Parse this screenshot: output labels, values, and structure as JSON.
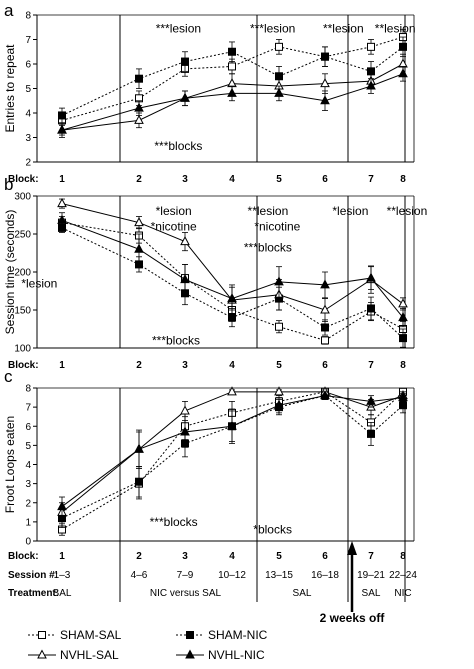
{
  "chart_data": [
    {
      "type": "line",
      "panel": "a",
      "ylabel": "Entries to repeat",
      "ylim": [
        2,
        8
      ],
      "yticks": [
        2,
        3,
        4,
        5,
        6,
        7,
        8
      ],
      "block_row_label": "Block:",
      "categories": [
        "1",
        "2",
        "3",
        "4",
        "5",
        "6",
        "7",
        "8"
      ],
      "series": [
        {
          "name": "SHAM-SAL",
          "values": [
            3.7,
            4.6,
            5.8,
            5.9,
            6.7,
            6.3,
            6.7,
            7.1
          ],
          "err": [
            0.2,
            0.3,
            0.3,
            0.3,
            0.3,
            0.4,
            0.3,
            0.3
          ]
        },
        {
          "name": "SHAM-NIC",
          "values": [
            3.9,
            5.4,
            6.1,
            6.5,
            5.5,
            6.3,
            5.7,
            6.7
          ],
          "err": [
            0.3,
            0.4,
            0.4,
            0.4,
            0.4,
            0.4,
            0.4,
            0.4
          ]
        },
        {
          "name": "NVHL-SAL",
          "values": [
            3.3,
            3.7,
            4.6,
            5.2,
            5.1,
            5.2,
            5.3,
            6.0
          ],
          "err": [
            0.2,
            0.3,
            0.3,
            0.4,
            0.4,
            0.4,
            0.3,
            0.4
          ]
        },
        {
          "name": "NVHL-NIC",
          "values": [
            3.3,
            4.2,
            4.6,
            4.8,
            4.8,
            4.5,
            5.1,
            5.6
          ],
          "err": [
            0.3,
            0.3,
            0.3,
            0.3,
            0.3,
            0.4,
            0.3,
            0.3
          ]
        }
      ],
      "annotations": [
        {
          "text": "***lesion",
          "x": 3.5,
          "y": 7.45
        },
        {
          "text": "***lesion",
          "x": 5.5,
          "y": 7.45
        },
        {
          "text": "**lesion",
          "x": 7.0,
          "y": 7.45
        },
        {
          "text": "**lesion",
          "x": 8.1,
          "y": 7.45
        },
        {
          "text": "***blocks",
          "x": 3.5,
          "y": 2.65
        }
      ]
    },
    {
      "type": "line",
      "panel": "b",
      "ylabel": "Session time (seconds)",
      "ylim": [
        100,
        300
      ],
      "yticks": [
        100,
        150,
        200,
        250,
        300
      ],
      "block_row_label": "Block:",
      "categories": [
        "1",
        "2",
        "3",
        "4",
        "5",
        "6",
        "7",
        "8"
      ],
      "series": [
        {
          "name": "SHAM-SAL",
          "values": [
            265,
            248,
            192,
            150,
            128,
            110,
            148,
            125
          ],
          "err": [
            8,
            10,
            18,
            15,
            8,
            5,
            12,
            10
          ]
        },
        {
          "name": "SHAM-NIC",
          "values": [
            258,
            210,
            172,
            140,
            165,
            127,
            152,
            113
          ],
          "err": [
            6,
            10,
            15,
            12,
            15,
            10,
            15,
            12
          ]
        },
        {
          "name": "NVHL-SAL",
          "values": [
            290,
            265,
            240,
            163,
            170,
            150,
            190,
            158
          ],
          "err": [
            6,
            8,
            12,
            20,
            20,
            15,
            18,
            8
          ]
        },
        {
          "name": "NVHL-NIC",
          "values": [
            268,
            230,
            190,
            165,
            187,
            183,
            192,
            140
          ],
          "err": [
            10,
            20,
            20,
            15,
            20,
            17,
            15,
            12
          ]
        }
      ],
      "annotations": [
        {
          "text": "*lesion",
          "x": 3.4,
          "y": 280
        },
        {
          "text": "*nicotine",
          "x": 3.4,
          "y": 260
        },
        {
          "text": "**lesion",
          "x": 5.4,
          "y": 280
        },
        {
          "text": "*nicotine",
          "x": 5.6,
          "y": 260
        },
        {
          "text": "***blocks",
          "x": 5.4,
          "y": 232
        },
        {
          "text": "*lesion",
          "x": 7.15,
          "y": 280
        },
        {
          "text": "**lesion",
          "x": 8.35,
          "y": 280
        },
        {
          "text": "*lesion",
          "x": 0.55,
          "y": 185
        },
        {
          "text": "***blocks",
          "x": 3.45,
          "y": 110
        }
      ]
    },
    {
      "type": "line",
      "panel": "c",
      "ylabel": "Froot Loops eaten",
      "ylim": [
        0,
        8
      ],
      "yticks": [
        0,
        1,
        2,
        3,
        4,
        5,
        6,
        7,
        8
      ],
      "block_row_label": "Block:",
      "categories": [
        "1",
        "2",
        "3",
        "4",
        "5",
        "6",
        "7",
        "8"
      ],
      "series": [
        {
          "name": "SHAM-SAL",
          "values": [
            0.6,
            3.0,
            6.0,
            6.7,
            7.3,
            7.8,
            6.2,
            7.8
          ],
          "err": [
            0.3,
            0.8,
            0.7,
            0.6,
            0.3,
            0.1,
            0.4,
            0.1
          ]
        },
        {
          "name": "SHAM-NIC",
          "values": [
            1.2,
            3.1,
            5.1,
            6.0,
            7.0,
            7.6,
            5.6,
            7.1
          ],
          "err": [
            0.5,
            0.8,
            0.7,
            0.8,
            0.4,
            0.2,
            0.6,
            0.4
          ]
        },
        {
          "name": "NVHL-SAL",
          "values": [
            1.5,
            4.8,
            6.8,
            7.8,
            7.8,
            7.8,
            7.0,
            7.6
          ],
          "err": [
            0.5,
            0.9,
            0.5,
            0.1,
            0.1,
            0.1,
            0.4,
            0.2
          ]
        },
        {
          "name": "NVHL-NIC",
          "values": [
            1.8,
            4.8,
            5.7,
            6.0,
            7.1,
            7.6,
            7.3,
            7.5
          ],
          "err": [
            0.5,
            1.0,
            0.8,
            0.9,
            0.4,
            0.2,
            0.3,
            0.2
          ]
        }
      ],
      "annotations": [
        {
          "text": "***blocks",
          "x": 3.4,
          "y": 1.0
        },
        {
          "text": "*blocks",
          "x": 5.5,
          "y": 0.6
        }
      ],
      "session_row": {
        "label": "Session #:",
        "values": [
          "1–3",
          "4–6",
          "7–9",
          "10–12",
          "13–15",
          "16–18",
          "19–21",
          "22–24"
        ]
      },
      "treatment_row": {
        "label": "Treatment:",
        "groups": [
          {
            "text": "SAL",
            "from": 1,
            "to": 1
          },
          {
            "text": "NIC versus SAL",
            "from": 2,
            "to": 4
          },
          {
            "text": "SAL",
            "from": 5,
            "to": 6
          },
          {
            "text": "SAL",
            "from": 7,
            "to": 7
          },
          {
            "text": "NIC",
            "from": 8,
            "to": 8
          }
        ]
      },
      "weeks_off_label": "2 weeks off"
    }
  ],
  "panel_letters": [
    "a",
    "b",
    "c"
  ],
  "legend": [
    {
      "name": "SHAM-SAL",
      "marker": "open-square",
      "dash": "dotted"
    },
    {
      "name": "SHAM-NIC",
      "marker": "filled-square",
      "dash": "dotted"
    },
    {
      "name": "NVHL-SAL",
      "marker": "open-triangle",
      "dash": "solid"
    },
    {
      "name": "NVHL-NIC",
      "marker": "filled-triangle",
      "dash": "solid"
    }
  ]
}
